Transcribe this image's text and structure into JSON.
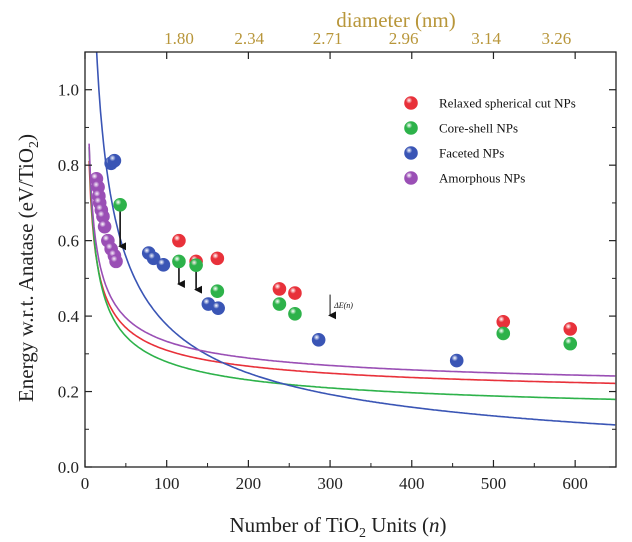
{
  "chart_data": {
    "type": "scatter",
    "xlabel": "Number of TiO",
    "xlabel_sub": "2",
    "xlabel_tail": " Units (",
    "xlabel_var": "n",
    "xlabel_end": ")",
    "ylabel": "Energy w.r.t. Anatase (eV/TiO",
    "ylabel_sub": "2",
    "ylabel_end": ")",
    "top_xlabel": "diameter (nm)",
    "xlim": [
      0,
      650
    ],
    "ylim": [
      0.0,
      1.1
    ],
    "x_ticks": [
      0,
      100,
      200,
      300,
      400,
      500,
      600
    ],
    "x_tick_labels": [
      "0",
      "100",
      "200",
      "300",
      "400",
      "500",
      "600"
    ],
    "y_ticks": [
      0.0,
      0.2,
      0.4,
      0.6,
      0.8,
      1.0
    ],
    "y_tick_labels": [
      "0.0",
      "0.2",
      "0.4",
      "0.6",
      "0.8",
      "1.0"
    ],
    "top_ticks": [
      {
        "x": 115,
        "label": "1.80"
      },
      {
        "x": 201,
        "label": "2.34"
      },
      {
        "x": 297,
        "label": "2.71"
      },
      {
        "x": 390,
        "label": "2.96"
      },
      {
        "x": 491,
        "label": "3.14"
      },
      {
        "x": 577,
        "label": "3.26"
      }
    ],
    "legend_position": "top-right",
    "series": [
      {
        "name": "Relaxed spherical cut  NPs",
        "color": "#e8313a",
        "points": [
          [
            115,
            0.6
          ],
          [
            136,
            0.545
          ],
          [
            162,
            0.553
          ],
          [
            238,
            0.472
          ],
          [
            257,
            0.461
          ],
          [
            512,
            0.385
          ],
          [
            594,
            0.366
          ]
        ],
        "fit": {
          "a": 0.165,
          "b": 1.445
        }
      },
      {
        "name": "Core-shell  NPs",
        "color": "#2db24a",
        "points": [
          [
            43,
            0.695
          ],
          [
            115,
            0.545
          ],
          [
            136,
            0.535
          ],
          [
            162,
            0.466
          ],
          [
            238,
            0.432
          ],
          [
            257,
            0.406
          ],
          [
            512,
            0.354
          ],
          [
            594,
            0.327
          ]
        ],
        "fit": {
          "a": 0.115,
          "b": 1.638
        }
      },
      {
        "name": "Faceted  NPs",
        "color": "#3a55b5",
        "points": [
          [
            32,
            0.805
          ],
          [
            36,
            0.812
          ],
          [
            78,
            0.567
          ],
          [
            84,
            0.553
          ],
          [
            96,
            0.536
          ],
          [
            151,
            0.432
          ],
          [
            163,
            0.421
          ],
          [
            286,
            0.337
          ],
          [
            455,
            0.282
          ]
        ],
        "fit": {
          "a": -0.06,
          "b": 4.37
        }
      },
      {
        "name": "Amorphous  NPs",
        "color": "#9a4fb5",
        "points": [
          [
            14,
            0.764
          ],
          [
            16,
            0.742
          ],
          [
            17,
            0.718
          ],
          [
            18,
            0.7
          ],
          [
            20,
            0.681
          ],
          [
            22,
            0.664
          ],
          [
            24,
            0.637
          ],
          [
            28,
            0.6
          ],
          [
            32,
            0.578
          ],
          [
            36,
            0.56
          ],
          [
            38,
            0.545
          ]
        ],
        "fit": {
          "a": 0.182,
          "b": 1.51
        }
      }
    ],
    "arrows": [
      {
        "x": 43,
        "y_from": 0.695,
        "y_to": 0.585
      },
      {
        "x": 115,
        "y_from": 0.545,
        "y_to": 0.485
      },
      {
        "x": 136,
        "y_from": 0.535,
        "y_to": 0.47
      }
    ],
    "annotation": {
      "x": 300,
      "y_from": 0.457,
      "y_to": 0.402,
      "label": "ΔE(n)"
    }
  }
}
